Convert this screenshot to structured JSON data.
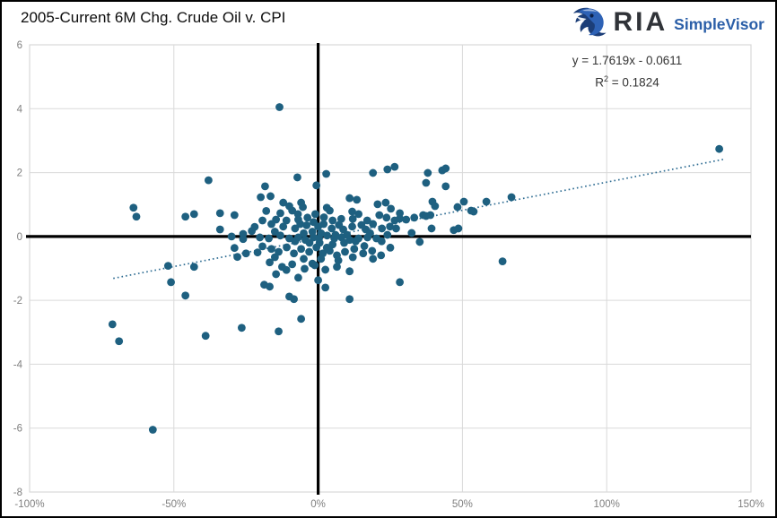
{
  "header": {
    "title": "2005-Current 6M Chg. Crude Oil v. CPI",
    "logo": {
      "ria": "RIA",
      "simplevisor": "SimpleVisor"
    }
  },
  "chart_data": {
    "type": "scatter",
    "title": "2005-Current 6M Chg. Crude Oil v. CPI",
    "x_axis": {
      "labels": [
        "-100%",
        "-50%",
        "0%",
        "50%",
        "100%",
        "150%"
      ],
      "values": [
        -100,
        -50,
        0,
        50,
        100,
        150
      ],
      "min": -100,
      "max": 150,
      "unit": "percent"
    },
    "y_axis": {
      "labels": [
        "6",
        "4",
        "2",
        "0",
        "-2",
        "-4",
        "-6",
        "-8"
      ],
      "values": [
        6,
        4,
        2,
        0,
        -2,
        -4,
        -6,
        -8
      ],
      "min": -8,
      "max": 6
    },
    "grid": true,
    "legend": "none",
    "annotation": {
      "line1": "y = 1.7619x - 0.0611",
      "r2_base": "R",
      "r2_sup": "2",
      "r2_rest": " = 0.1824"
    },
    "trendline": {
      "slope": 1.7619,
      "intercept": -0.0611,
      "r_squared": 0.1824,
      "x_start_pct": -71,
      "x_end_pct": 140.5,
      "style": "dotted",
      "color": "#2f6d93"
    },
    "point_color": "#1e6080",
    "point_radius": 4.4,
    "colors": {
      "gridline": "#d9d9d9",
      "plot_border": "#d9d9d9",
      "zero_axis": "#000000",
      "tick_label": "#7f7f7f"
    },
    "points": [
      [
        -13.4,
        4.05
      ],
      [
        139,
        2.74
      ],
      [
        -57.3,
        -6.05
      ],
      [
        -71.3,
        -2.75
      ],
      [
        -69,
        -3.28
      ],
      [
        -39,
        -3.11
      ],
      [
        -26.5,
        -2.86
      ],
      [
        -13.7,
        -2.97
      ],
      [
        -8.4,
        -1.96
      ],
      [
        10.9,
        -1.96
      ],
      [
        -5.9,
        -2.58
      ],
      [
        63.9,
        -0.78
      ],
      [
        28.3,
        -1.43
      ],
      [
        -64,
        0.9
      ],
      [
        -63,
        0.62
      ],
      [
        -38,
        1.76
      ],
      [
        -46,
        0.62
      ],
      [
        -43,
        0.7
      ],
      [
        -34,
        0.73
      ],
      [
        -29,
        0.67
      ],
      [
        -34,
        0.22
      ],
      [
        -30,
        0
      ],
      [
        -26,
        0.08
      ],
      [
        -23,
        0.17
      ],
      [
        -26,
        -0.08
      ],
      [
        -29,
        -0.36
      ],
      [
        -25,
        -0.53
      ],
      [
        -28,
        -0.64
      ],
      [
        -52,
        -0.92
      ],
      [
        -43,
        -0.95
      ],
      [
        -51,
        -1.43
      ],
      [
        -46,
        -1.85
      ],
      [
        37.4,
        1.68
      ],
      [
        44.2,
        1.57
      ],
      [
        39.6,
        1.09
      ],
      [
        40.5,
        0.95
      ],
      [
        28.3,
        0.73
      ],
      [
        28.3,
        0.56
      ],
      [
        30.5,
        0.53
      ],
      [
        33.3,
        0.59
      ],
      [
        36.4,
        0.67
      ],
      [
        37.4,
        0.64
      ],
      [
        38.9,
        0.67
      ],
      [
        48.3,
        0.92
      ],
      [
        50.5,
        1.09
      ],
      [
        53,
        0.81
      ],
      [
        53.9,
        0.78
      ],
      [
        58.3,
        1.09
      ],
      [
        67,
        1.23
      ],
      [
        32.4,
        0.11
      ],
      [
        39.3,
        0.25
      ],
      [
        47,
        0.2
      ],
      [
        48.6,
        0.25
      ],
      [
        35.2,
        -0.17
      ],
      [
        -7.2,
        1.85
      ],
      [
        2.8,
        1.96
      ],
      [
        19,
        1.99
      ],
      [
        24,
        2.1
      ],
      [
        26.5,
        2.18
      ],
      [
        38,
        1.99
      ],
      [
        43,
        2.07
      ],
      [
        44.2,
        2.13
      ],
      [
        -18.4,
        1.57
      ],
      [
        -19.9,
        1.23
      ],
      [
        -16.5,
        1.26
      ],
      [
        -12.1,
        1.06
      ],
      [
        -10,
        0.95
      ],
      [
        -9,
        0.81
      ],
      [
        -13.1,
        0.73
      ],
      [
        -5.9,
        1.06
      ],
      [
        -5.3,
        0.92
      ],
      [
        -0.6,
        1.6
      ],
      [
        4,
        0.81
      ],
      [
        10.9,
        1.2
      ],
      [
        13.4,
        1.15
      ],
      [
        11.8,
        0.78
      ],
      [
        20.6,
        1.01
      ],
      [
        23.4,
        1.06
      ],
      [
        25.2,
        0.87
      ],
      [
        21.2,
        0.67
      ],
      [
        23.7,
        0.59
      ],
      [
        26.5,
        0.5
      ],
      [
        -19.3,
        0.5
      ],
      [
        -14.6,
        0.53
      ],
      [
        -16.2,
        0.39
      ],
      [
        -12.1,
        0.31
      ],
      [
        -6.9,
        0.53
      ],
      [
        -6.2,
        0.39
      ],
      [
        -3.7,
        0.59
      ],
      [
        -1.6,
        0.45
      ],
      [
        0,
        0.31
      ],
      [
        1.9,
        0.39
      ],
      [
        4.7,
        0.25
      ],
      [
        7.2,
        0.36
      ],
      [
        8.7,
        0.22
      ],
      [
        11.8,
        0.31
      ],
      [
        15,
        0.36
      ],
      [
        16.5,
        0.22
      ],
      [
        19,
        0.39
      ],
      [
        22.1,
        0.25
      ],
      [
        24.9,
        0.31
      ],
      [
        -20.2,
        -0.03
      ],
      [
        -17.1,
        -0.06
      ],
      [
        -13.1,
        0.03
      ],
      [
        -10,
        -0.06
      ],
      [
        -6.9,
        -0.03
      ],
      [
        -4.4,
        -0.11
      ],
      [
        -1.6,
        -0.03
      ],
      [
        0.3,
        -0.06
      ],
      [
        3.1,
        0.03
      ],
      [
        5.6,
        -0.06
      ],
      [
        8.1,
        -0.03
      ],
      [
        10.9,
        -0.11
      ],
      [
        14,
        -0.06
      ],
      [
        17.1,
        -0.03
      ],
      [
        20.2,
        -0.06
      ],
      [
        -19.3,
        -0.31
      ],
      [
        -16.2,
        -0.39
      ],
      [
        -13.7,
        -0.48
      ],
      [
        -10.9,
        -0.34
      ],
      [
        -8.4,
        -0.53
      ],
      [
        -5.9,
        -0.39
      ],
      [
        -3.1,
        -0.48
      ],
      [
        -0.6,
        -0.34
      ],
      [
        1.6,
        -0.53
      ],
      [
        4,
        -0.45
      ],
      [
        6.5,
        -0.59
      ],
      [
        9.3,
        -0.48
      ],
      [
        12.5,
        -0.39
      ],
      [
        15.6,
        -0.53
      ],
      [
        18.7,
        -0.45
      ],
      [
        21.8,
        -0.59
      ],
      [
        -16.8,
        -0.81
      ],
      [
        -12.5,
        -0.95
      ],
      [
        -9,
        -0.87
      ],
      [
        -4.7,
        -1.01
      ],
      [
        -1.2,
        -0.9
      ],
      [
        2.5,
        -1.04
      ],
      [
        6.5,
        -0.95
      ],
      [
        10.9,
        -1.09
      ],
      [
        -14.6,
        -1.18
      ],
      [
        -6.9,
        -1.29
      ],
      [
        -18.7,
        -1.51
      ],
      [
        -16.8,
        -1.57
      ],
      [
        0,
        -1.37
      ],
      [
        2.5,
        -1.6
      ],
      [
        -10,
        -1.88
      ],
      [
        -22,
        0.3
      ],
      [
        -21,
        -0.5
      ],
      [
        -18,
        0.8
      ],
      [
        -15,
        0.15
      ],
      [
        -15,
        -0.65
      ],
      [
        -11,
        0.5
      ],
      [
        -11,
        -1.05
      ],
      [
        -8,
        0.25
      ],
      [
        -8,
        -0.15
      ],
      [
        -7,
        0.7
      ],
      [
        -5,
        0.1
      ],
      [
        -5,
        -0.7
      ],
      [
        -4,
        0.35
      ],
      [
        -3,
        -0.2
      ],
      [
        -2,
        0.15
      ],
      [
        -2,
        -0.85
      ],
      [
        -1,
        0.7
      ],
      [
        0.5,
        -0.2
      ],
      [
        1,
        0.1
      ],
      [
        1,
        -0.7
      ],
      [
        2,
        0.6
      ],
      [
        3,
        -0.35
      ],
      [
        3,
        0.9
      ],
      [
        5,
        0.5
      ],
      [
        5,
        -0.25
      ],
      [
        6,
        0.05
      ],
      [
        7,
        -0.75
      ],
      [
        8,
        0.55
      ],
      [
        9,
        -0.2
      ],
      [
        10,
        0.05
      ],
      [
        12,
        -0.65
      ],
      [
        12,
        0.55
      ],
      [
        13,
        -0.15
      ],
      [
        14,
        0.7
      ],
      [
        16,
        -0.3
      ],
      [
        17,
        0.5
      ],
      [
        18,
        0.1
      ],
      [
        19,
        -0.7
      ],
      [
        22,
        -0.15
      ],
      [
        24,
        0.05
      ],
      [
        25,
        -0.35
      ],
      [
        27,
        0.25
      ]
    ]
  }
}
